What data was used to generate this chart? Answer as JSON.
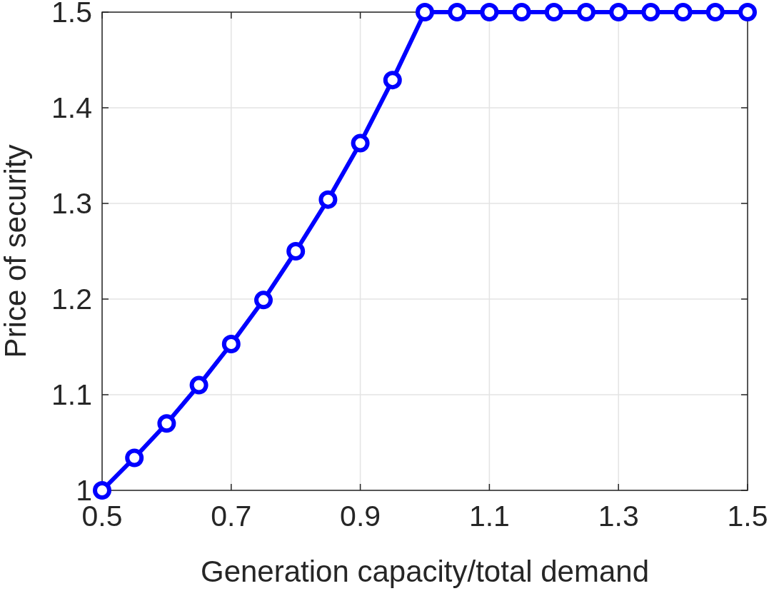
{
  "chart_data": {
    "type": "line",
    "xlabel": "Generation capacity/total demand",
    "ylabel": "Price of security",
    "x": [
      0.5,
      0.55,
      0.6,
      0.65,
      0.7,
      0.75,
      0.8,
      0.85,
      0.9,
      0.95,
      1.0,
      1.05,
      1.1,
      1.15,
      1.2,
      1.25,
      1.3,
      1.35,
      1.4,
      1.45,
      1.5
    ],
    "series": [
      {
        "color": "#0000ff",
        "values": [
          1.0,
          1.034,
          1.07,
          1.11,
          1.153,
          1.199,
          1.25,
          1.304,
          1.363,
          1.429,
          1.5,
          1.5,
          1.5,
          1.5,
          1.5,
          1.5,
          1.5,
          1.5,
          1.5,
          1.5,
          1.5
        ]
      }
    ],
    "xlim": [
      0.5,
      1.5
    ],
    "ylim": [
      1,
      1.5
    ],
    "xticks": [
      0.5,
      0.7,
      0.9,
      1.1,
      1.3,
      1.5
    ],
    "yticks": [
      1,
      1.1,
      1.2,
      1.3,
      1.4,
      1.5
    ],
    "grid": true,
    "marker": "circle",
    "line_style": "solid"
  }
}
